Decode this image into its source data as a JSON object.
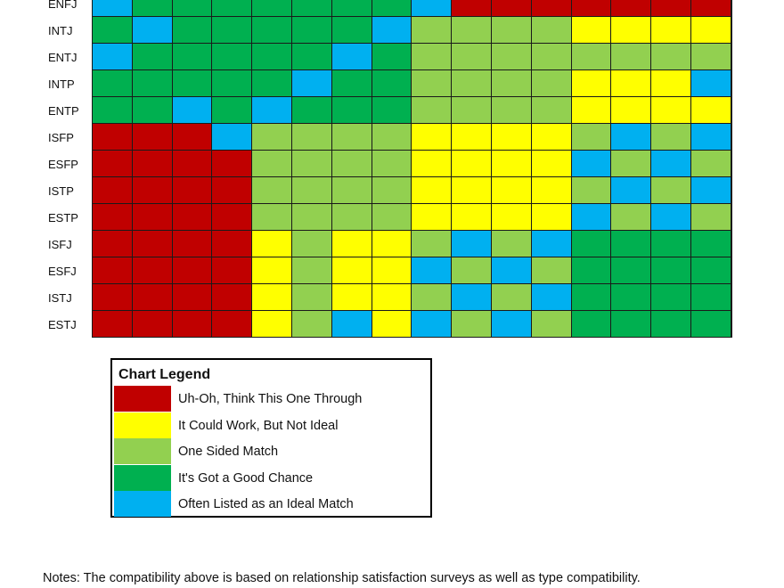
{
  "chart_data": {
    "type": "heatmap",
    "rows": [
      "ENFJ",
      "INTJ",
      "ENTJ",
      "INTP",
      "ENTP",
      "ISFP",
      "ESFP",
      "ISTP",
      "ESTP",
      "ISFJ",
      "ESFJ",
      "ISTJ",
      "ESTJ"
    ],
    "columns_visible_labels": [],
    "legend_title": "Chart Legend",
    "categories": [
      {
        "code": "R",
        "label": "Uh-Oh, Think This One Through",
        "color": "#c00000"
      },
      {
        "code": "Y",
        "label": "It Could Work, But Not Ideal",
        "color": "#ffff00"
      },
      {
        "code": "L",
        "label": "One Sided Match",
        "color": "#92d050"
      },
      {
        "code": "G",
        "label": "It's Got a Good Chance",
        "color": "#00b050"
      },
      {
        "code": "B",
        "label": "Often Listed as an Ideal Match",
        "color": "#00b0f0"
      }
    ],
    "values": [
      [
        "B",
        "G",
        "G",
        "G",
        "G",
        "G",
        "G",
        "G",
        "B",
        "R",
        "R",
        "R",
        "R",
        "R",
        "R",
        "R"
      ],
      [
        "G",
        "B",
        "G",
        "G",
        "G",
        "G",
        "G",
        "B",
        "L",
        "L",
        "L",
        "L",
        "Y",
        "Y",
        "Y",
        "Y"
      ],
      [
        "B",
        "G",
        "G",
        "G",
        "G",
        "G",
        "B",
        "G",
        "L",
        "L",
        "L",
        "L",
        "L",
        "L",
        "L",
        "L"
      ],
      [
        "G",
        "G",
        "G",
        "G",
        "G",
        "B",
        "G",
        "G",
        "L",
        "L",
        "L",
        "L",
        "Y",
        "Y",
        "Y",
        "B"
      ],
      [
        "G",
        "G",
        "B",
        "G",
        "B",
        "G",
        "G",
        "G",
        "L",
        "L",
        "L",
        "L",
        "Y",
        "Y",
        "Y",
        "Y"
      ],
      [
        "R",
        "R",
        "R",
        "B",
        "L",
        "L",
        "L",
        "L",
        "Y",
        "Y",
        "Y",
        "Y",
        "L",
        "B",
        "L",
        "B"
      ],
      [
        "R",
        "R",
        "R",
        "R",
        "L",
        "L",
        "L",
        "L",
        "Y",
        "Y",
        "Y",
        "Y",
        "B",
        "L",
        "B",
        "L"
      ],
      [
        "R",
        "R",
        "R",
        "R",
        "L",
        "L",
        "L",
        "L",
        "Y",
        "Y",
        "Y",
        "Y",
        "L",
        "B",
        "L",
        "B"
      ],
      [
        "R",
        "R",
        "R",
        "R",
        "L",
        "L",
        "L",
        "L",
        "Y",
        "Y",
        "Y",
        "Y",
        "B",
        "L",
        "B",
        "L"
      ],
      [
        "R",
        "R",
        "R",
        "R",
        "Y",
        "L",
        "Y",
        "Y",
        "L",
        "B",
        "L",
        "B",
        "G",
        "G",
        "G",
        "G"
      ],
      [
        "R",
        "R",
        "R",
        "R",
        "Y",
        "L",
        "Y",
        "Y",
        "B",
        "L",
        "B",
        "L",
        "G",
        "G",
        "G",
        "G"
      ],
      [
        "R",
        "R",
        "R",
        "R",
        "Y",
        "L",
        "Y",
        "Y",
        "L",
        "B",
        "L",
        "B",
        "G",
        "G",
        "G",
        "G"
      ],
      [
        "R",
        "R",
        "R",
        "R",
        "Y",
        "L",
        "B",
        "Y",
        "B",
        "L",
        "B",
        "L",
        "G",
        "G",
        "G",
        "G"
      ]
    ]
  },
  "notes": "Notes: The compatibility above is based on relationship satisfaction surveys as well as type compatibility."
}
